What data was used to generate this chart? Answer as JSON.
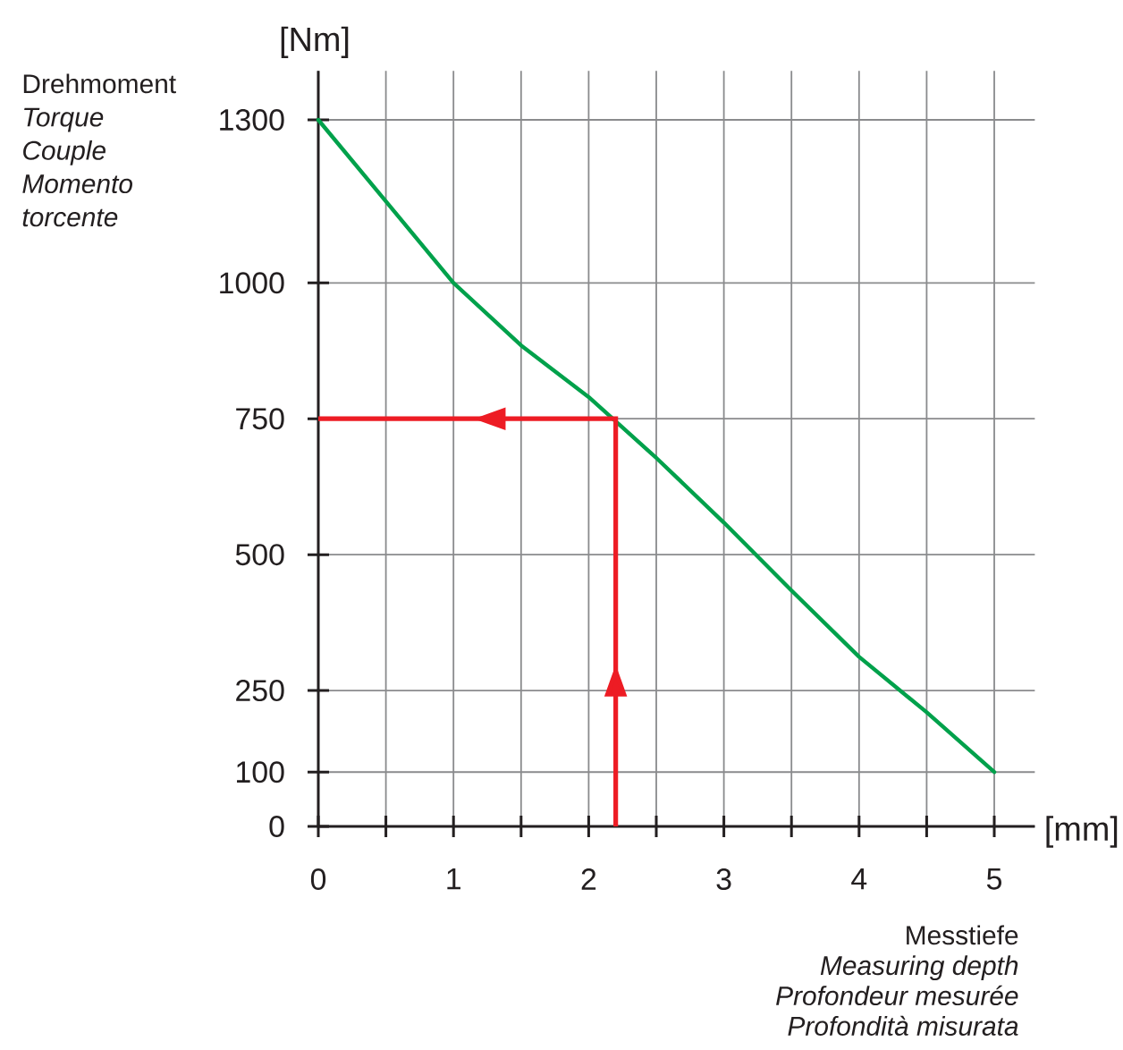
{
  "chart_data": {
    "type": "line",
    "xlabel": "Messtiefe\n*Measuring depth\nProfondeur mesurée\nProfondità misurata*",
    "ylabel": "Drehmoment\n*Torque\nCouple\nMomento\ntorcente*",
    "annotations": [
      "[Nm]",
      "[mm]"
    ],
    "series": [
      {
        "x": [
          0,
          0.5,
          1,
          1.5,
          2,
          2.5,
          3,
          3.5,
          4,
          4.5,
          5
        ],
        "values": [
          1300,
          1150,
          1000,
          885,
          790,
          678,
          559,
          434,
          312,
          210,
          100
        ],
        "color": "#00a14b"
      },
      {
        "x": [
          2.2,
          2.2,
          0
        ],
        "values": [
          0,
          750,
          750
        ],
        "color": "#ed1c24"
      }
    ],
    "xlim": [
      0,
      5.3
    ],
    "ylim": [
      0,
      1390
    ],
    "xticks": [
      0,
      {
        "value": 0.5,
        "label": null
      },
      1,
      {
        "value": 1.5,
        "label": null
      },
      2,
      {
        "value": 2.5,
        "label": null
      },
      3,
      {
        "value": 3.5,
        "label": null
      },
      4,
      {
        "value": 4.5,
        "label": null
      },
      5
    ],
    "yticks": [
      0,
      100,
      250,
      500,
      750,
      1000,
      1300
    ],
    "grid": true,
    "marker": "none",
    "line_style": "solid"
  }
}
